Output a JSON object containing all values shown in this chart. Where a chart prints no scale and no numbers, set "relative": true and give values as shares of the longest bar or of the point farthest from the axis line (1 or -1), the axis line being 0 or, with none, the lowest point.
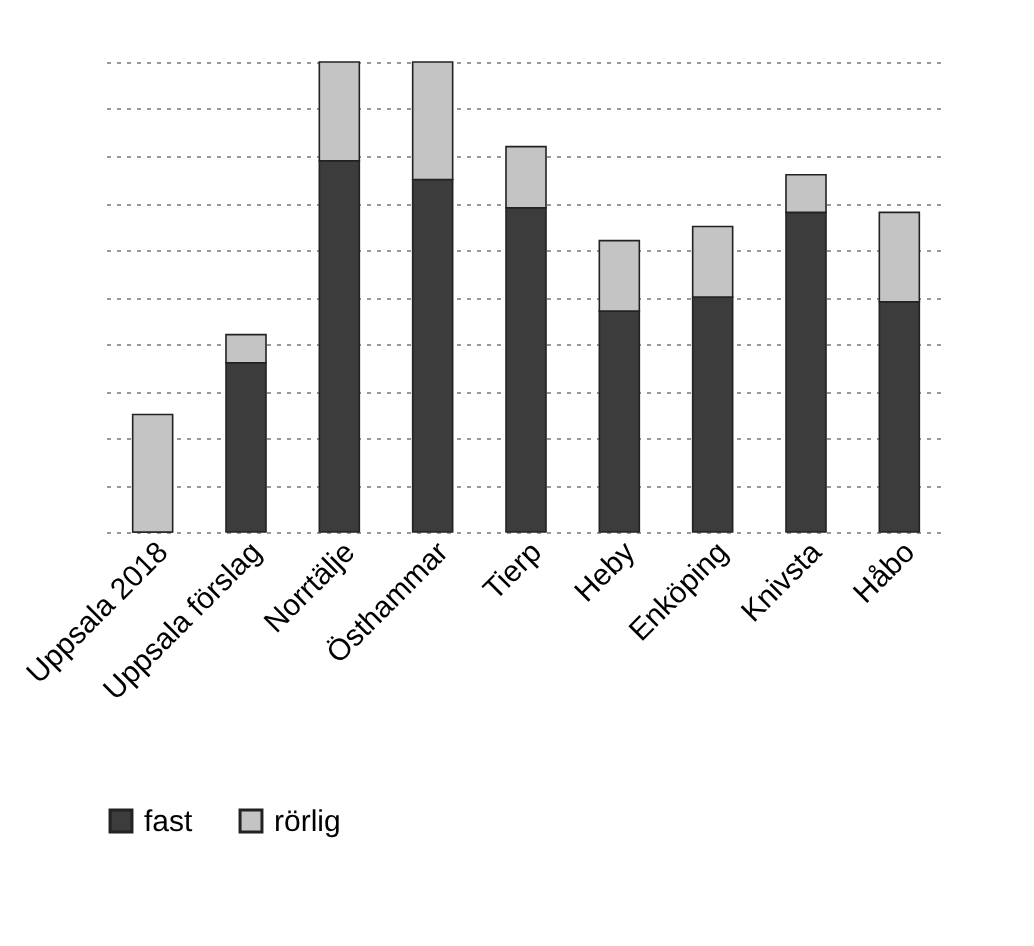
{
  "chart_data": {
    "type": "bar",
    "stacked": true,
    "relative": true,
    "grid": "y",
    "legend": "bottom",
    "categories": [
      "Uppsala 2018",
      "Uppsala förslag",
      "Norrtälje",
      "Östhammar",
      "Tierp",
      "Heby",
      "Enköping",
      "Knivsta",
      "Håbo"
    ],
    "series": [
      {
        "name": "fast",
        "color": "#3c3c3c",
        "values": [
          0,
          0.36,
          0.79,
          0.75,
          0.69,
          0.47,
          0.5,
          0.68,
          0.49
        ]
      },
      {
        "name": "rörlig",
        "color": "#c4c4c4",
        "values": [
          0.25,
          0.06,
          0.21,
          0.25,
          0.13,
          0.15,
          0.15,
          0.08,
          0.19
        ]
      }
    ]
  }
}
